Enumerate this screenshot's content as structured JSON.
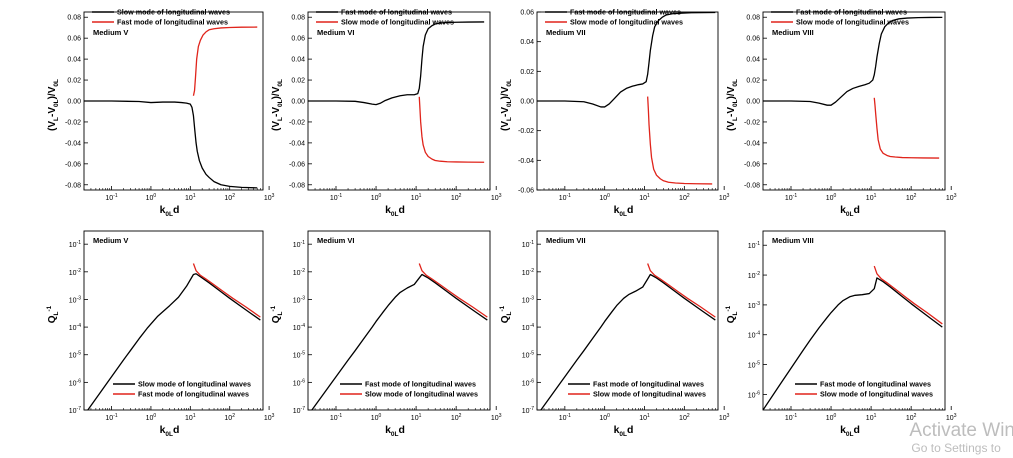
{
  "chart_data": [
    {
      "type": "line",
      "panel": "top-1",
      "label": "Medium V",
      "xlabel": "k0Ld",
      "ylabel": "(VL-V0L)/V0L",
      "xscale": "log",
      "xlim": [
        0.02,
        700
      ],
      "ylim": [
        -0.085,
        0.085
      ],
      "yticks": [
        "-0.08",
        "-0.06",
        "-0.04",
        "-0.02",
        "0.00",
        "0.02",
        "0.04",
        "0.06",
        "0.08"
      ],
      "xticks": [
        "10-1",
        "100",
        "101",
        "102",
        "103"
      ],
      "legend_position": "top",
      "series": [
        {
          "name": "Slow mode of longitudinal waves",
          "color": "#000000",
          "x": [
            0.02,
            0.1,
            0.5,
            1,
            2,
            4,
            6,
            8,
            10,
            11,
            12,
            13,
            14,
            15,
            17,
            20,
            25,
            30,
            40,
            60,
            100,
            200,
            500
          ],
          "y": [
            0,
            0,
            -0.0005,
            -0.0015,
            -0.001,
            -0.001,
            -0.0015,
            -0.002,
            -0.003,
            -0.006,
            -0.014,
            -0.028,
            -0.04,
            -0.048,
            -0.057,
            -0.064,
            -0.07,
            -0.073,
            -0.077,
            -0.08,
            -0.0815,
            -0.0825,
            -0.083
          ]
        },
        {
          "name": "Fast mode of longitudinal waves",
          "color": "#e0241b",
          "x": [
            12,
            12.8,
            13.5,
            14.5,
            16,
            18,
            21,
            25,
            30,
            40,
            60,
            100,
            200,
            500
          ],
          "y": [
            0.005,
            0.01,
            0.022,
            0.04,
            0.052,
            0.058,
            0.063,
            0.066,
            0.068,
            0.069,
            0.0698,
            0.0702,
            0.0705,
            0.0706
          ]
        }
      ]
    },
    {
      "type": "line",
      "panel": "top-2",
      "label": "Medium VI",
      "xlabel": "k0Ld",
      "ylabel": "(VL-V0L)/V0L",
      "xscale": "log",
      "xlim": [
        0.02,
        700
      ],
      "ylim": [
        -0.085,
        0.085
      ],
      "yticks": [
        "-0.08",
        "-0.06",
        "-0.04",
        "-0.02",
        "0.00",
        "0.02",
        "0.04",
        "0.06",
        "0.08"
      ],
      "xticks": [
        "10-1",
        "100",
        "101",
        "102",
        "103"
      ],
      "legend_position": "top",
      "series": [
        {
          "name": "Fast mode of longitudinal waves",
          "color": "#000000",
          "x": [
            0.02,
            0.1,
            0.3,
            0.5,
            0.8,
            1,
            1.3,
            1.7,
            2.5,
            4,
            6,
            9,
            11,
            12,
            13,
            14,
            15,
            17,
            20,
            25,
            30,
            40,
            60,
            100,
            200,
            500
          ],
          "y": [
            0,
            0,
            -0.0003,
            -0.0015,
            -0.003,
            -0.0035,
            -0.002,
            0.0005,
            0.003,
            0.005,
            0.006,
            0.006,
            0.007,
            0.012,
            0.024,
            0.04,
            0.052,
            0.063,
            0.069,
            0.072,
            0.0735,
            0.0745,
            0.075,
            0.0752,
            0.0754,
            0.0755
          ]
        },
        {
          "name": "Slow mode of longitudinal waves",
          "color": "#e0241b",
          "x": [
            12,
            12.5,
            13,
            14,
            15,
            17,
            20,
            25,
            30,
            40,
            60,
            100,
            200,
            500
          ],
          "y": [
            0.004,
            -0.008,
            -0.02,
            -0.034,
            -0.042,
            -0.049,
            -0.053,
            -0.0555,
            -0.0568,
            -0.0575,
            -0.058,
            -0.0582,
            -0.0584,
            -0.0585
          ]
        }
      ]
    },
    {
      "type": "line",
      "panel": "top-3",
      "label": "Medium VII",
      "xlabel": "k0Ld",
      "ylabel": "(VL-V0L)/V0L",
      "xscale": "log",
      "xlim": [
        0.02,
        700
      ],
      "ylim": [
        -0.06,
        0.06
      ],
      "yticks": [
        "-0.06",
        "-0.04",
        "-0.02",
        "0.00",
        "0.02",
        "0.04",
        "0.06"
      ],
      "xticks": [
        "10-1",
        "100",
        "101",
        "102",
        "103"
      ],
      "legend_position": "top",
      "series": [
        {
          "name": "Fast mode of longitudinal waves",
          "color": "#000000",
          "x": [
            0.02,
            0.1,
            0.3,
            0.5,
            0.8,
            1,
            1.3,
            1.8,
            2.5,
            3.5,
            5,
            7,
            9,
            11,
            12,
            13,
            14,
            16,
            18,
            22,
            28,
            35,
            50,
            80,
            150,
            300,
            600
          ],
          "y": [
            0,
            0,
            -0.0005,
            -0.002,
            -0.004,
            -0.004,
            -0.002,
            0.002,
            0.006,
            0.0085,
            0.01,
            0.011,
            0.0115,
            0.013,
            0.018,
            0.026,
            0.034,
            0.044,
            0.05,
            0.054,
            0.0565,
            0.058,
            0.0588,
            0.0592,
            0.0595,
            0.0596,
            0.0597
          ]
        },
        {
          "name": "Slow mode of longitudinal waves",
          "color": "#e0241b",
          "x": [
            12,
            12.5,
            13,
            14,
            15,
            17,
            20,
            25,
            30,
            40,
            60,
            100,
            200,
            500
          ],
          "y": [
            0.003,
            -0.006,
            -0.016,
            -0.029,
            -0.038,
            -0.046,
            -0.05,
            -0.0525,
            -0.0538,
            -0.0548,
            -0.0553,
            -0.0556,
            -0.0558,
            -0.0559
          ]
        }
      ]
    },
    {
      "type": "line",
      "panel": "top-4",
      "label": "Medium VIII",
      "xlabel": "k0Ld",
      "ylabel": "(VL-V0L)/V0L",
      "xscale": "log",
      "xlim": [
        0.02,
        700
      ],
      "ylim": [
        -0.085,
        0.085
      ],
      "yticks": [
        "-0.08",
        "-0.06",
        "-0.04",
        "-0.02",
        "0.00",
        "0.02",
        "0.04",
        "0.06",
        "0.08"
      ],
      "xticks": [
        "10-1",
        "100",
        "101",
        "102",
        "103"
      ],
      "legend_position": "top",
      "series": [
        {
          "name": "Fast mode of longitudinal waves",
          "color": "#000000",
          "x": [
            0.02,
            0.1,
            0.3,
            0.5,
            0.8,
            1,
            1.3,
            1.8,
            2.5,
            3.5,
            5,
            7,
            9,
            11,
            12,
            13,
            14,
            16,
            18,
            22,
            28,
            35,
            50,
            80,
            150,
            300,
            600
          ],
          "y": [
            0,
            0,
            -0.0005,
            -0.002,
            -0.004,
            -0.004,
            -0.001,
            0.004,
            0.009,
            0.012,
            0.014,
            0.0155,
            0.017,
            0.02,
            0.025,
            0.033,
            0.042,
            0.055,
            0.064,
            0.071,
            0.075,
            0.077,
            0.0785,
            0.0792,
            0.0796,
            0.0798,
            0.0799
          ]
        },
        {
          "name": "Slow mode of longitudinal waves",
          "color": "#e0241b",
          "x": [
            12,
            12.5,
            13,
            14,
            15,
            17,
            20,
            25,
            30,
            40,
            60,
            100,
            200,
            500
          ],
          "y": [
            0.003,
            -0.004,
            -0.012,
            -0.026,
            -0.037,
            -0.046,
            -0.05,
            -0.052,
            -0.053,
            -0.0535,
            -0.054,
            -0.0542,
            -0.0544,
            -0.0545
          ]
        }
      ]
    },
    {
      "type": "line",
      "panel": "bottom-1",
      "label": "Medium V",
      "xlabel": "k0Ld",
      "ylabel": "QL-1",
      "xscale": "log",
      "yscale": "log",
      "xlim": [
        0.02,
        700
      ],
      "ylim": [
        1e-07,
        0.3
      ],
      "yticks": [
        "10-7",
        "10-6",
        "10-5",
        "10-4",
        "10-3",
        "10-2",
        "10-1"
      ],
      "xticks": [
        "10-1",
        "100",
        "101",
        "102",
        "103"
      ],
      "legend_position": "bottom-right",
      "series": [
        {
          "name": "Slow mode of longitudinal waves",
          "color": "#000000",
          "x": [
            0.025,
            0.05,
            0.1,
            0.2,
            0.3,
            0.5,
            0.8,
            1,
            1.5,
            2,
            3,
            5,
            8,
            11,
            12,
            14,
            20,
            30,
            60,
            100,
            300,
            600
          ],
          "y": [
            1e-07,
            4e-07,
            1.6e-06,
            6.4e-06,
            1.4e-05,
            3.8e-05,
            9e-05,
            0.00013,
            0.00025,
            0.00036,
            0.0006,
            0.0012,
            0.003,
            0.0065,
            0.008,
            0.0085,
            0.006,
            0.004,
            0.0019,
            0.0011,
            0.00036,
            0.00018
          ]
        },
        {
          "name": "Fast mode of longitudinal waves",
          "color": "#e0241b",
          "x": [
            12,
            14,
            18,
            25,
            40,
            70,
            120,
            250,
            600
          ],
          "y": [
            0.02,
            0.011,
            0.0075,
            0.0055,
            0.0034,
            0.0019,
            0.0011,
            0.00055,
            0.00023
          ]
        }
      ]
    },
    {
      "type": "line",
      "panel": "bottom-2",
      "label": "Medium VI",
      "xlabel": "k0Ld",
      "ylabel": "QL-1",
      "xscale": "log",
      "yscale": "log",
      "xlim": [
        0.02,
        700
      ],
      "ylim": [
        1e-07,
        0.3
      ],
      "yticks": [
        "10-7",
        "10-6",
        "10-5",
        "10-4",
        "10-3",
        "10-2",
        "10-1"
      ],
      "xticks": [
        "10-1",
        "100",
        "101",
        "102",
        "103"
      ],
      "legend_position": "bottom-right",
      "series": [
        {
          "name": "Fast mode of longitudinal waves",
          "color": "#000000",
          "x": [
            0.025,
            0.05,
            0.1,
            0.2,
            0.3,
            0.5,
            0.8,
            1,
            1.5,
            2,
            3,
            4,
            6,
            9,
            12,
            14,
            20,
            30,
            60,
            100,
            300,
            600
          ],
          "y": [
            1e-07,
            4e-07,
            1.6e-06,
            6.4e-06,
            1.4e-05,
            3.9e-05,
            0.0001,
            0.00016,
            0.00035,
            0.0006,
            0.0012,
            0.0018,
            0.0026,
            0.0035,
            0.006,
            0.008,
            0.006,
            0.004,
            0.0019,
            0.0011,
            0.00036,
            0.00018
          ]
        },
        {
          "name": "Slow mode of longitudinal waves",
          "color": "#e0241b",
          "x": [
            12,
            14,
            18,
            25,
            40,
            70,
            120,
            250,
            600
          ],
          "y": [
            0.02,
            0.011,
            0.0075,
            0.0055,
            0.0034,
            0.0019,
            0.0011,
            0.00055,
            0.00023
          ]
        }
      ]
    },
    {
      "type": "line",
      "panel": "bottom-3",
      "label": "Medium VII",
      "xlabel": "k0Ld",
      "ylabel": "QL-1",
      "xscale": "log",
      "yscale": "log",
      "xlim": [
        0.02,
        700
      ],
      "ylim": [
        1e-07,
        0.3
      ],
      "yticks": [
        "10-7",
        "10-6",
        "10-5",
        "10-4",
        "10-3",
        "10-2",
        "10-1"
      ],
      "xticks": [
        "10-1",
        "100",
        "101",
        "102",
        "103"
      ],
      "legend_position": "bottom-right",
      "series": [
        {
          "name": "Fast mode of longitudinal waves",
          "color": "#000000",
          "x": [
            0.025,
            0.05,
            0.1,
            0.2,
            0.3,
            0.5,
            0.8,
            1,
            1.5,
            2,
            3,
            4,
            6,
            9,
            12,
            14,
            20,
            30,
            60,
            100,
            300,
            600
          ],
          "y": [
            1e-07,
            4e-07,
            1.6e-06,
            6.4e-06,
            1.4e-05,
            3.9e-05,
            0.0001,
            0.00016,
            0.00035,
            0.0006,
            0.0011,
            0.0015,
            0.002,
            0.0028,
            0.0055,
            0.008,
            0.006,
            0.004,
            0.0019,
            0.0011,
            0.00036,
            0.00018
          ]
        },
        {
          "name": "Slow mode of longitudinal waves",
          "color": "#e0241b",
          "x": [
            12,
            14,
            18,
            25,
            40,
            70,
            120,
            250,
            600
          ],
          "y": [
            0.02,
            0.011,
            0.0075,
            0.0055,
            0.0034,
            0.0019,
            0.0011,
            0.00055,
            0.00023
          ]
        }
      ]
    },
    {
      "type": "line",
      "panel": "bottom-4",
      "label": "Medium VIII",
      "xlabel": "k0Ld",
      "ylabel": "QL-1",
      "xscale": "log",
      "yscale": "log",
      "xlim": [
        0.02,
        700
      ],
      "ylim": [
        3e-07,
        0.3
      ],
      "yticks": [
        "10-6",
        "10-5",
        "10-4",
        "10-3",
        "10-2",
        "10-1"
      ],
      "xticks": [
        "10-1",
        "100",
        "101",
        "102",
        "103"
      ],
      "legend_position": "bottom-right",
      "series": [
        {
          "name": "Fast mode of longitudinal waves",
          "color": "#000000",
          "x": [
            0.02,
            0.05,
            0.1,
            0.2,
            0.3,
            0.5,
            0.8,
            1,
            1.5,
            2,
            3,
            4,
            6,
            9,
            12,
            14,
            20,
            30,
            60,
            100,
            300,
            600
          ],
          "y": [
            3e-07,
            1.9e-06,
            7.5e-06,
            3e-05,
            6.6e-05,
            0.00017,
            0.00038,
            0.00055,
            0.001,
            0.0014,
            0.0019,
            0.0021,
            0.0022,
            0.0024,
            0.0035,
            0.008,
            0.006,
            0.004,
            0.0019,
            0.0011,
            0.00036,
            0.00018
          ]
        },
        {
          "name": "Slow mode of longitudinal waves",
          "color": "#e0241b",
          "x": [
            12,
            14,
            18,
            25,
            40,
            70,
            120,
            250,
            600
          ],
          "y": [
            0.02,
            0.011,
            0.0075,
            0.0055,
            0.0034,
            0.0019,
            0.0011,
            0.00055,
            0.00023
          ]
        }
      ]
    }
  ],
  "watermark": {
    "line1": "Activate Win",
    "line2": "Go to Settings to"
  }
}
